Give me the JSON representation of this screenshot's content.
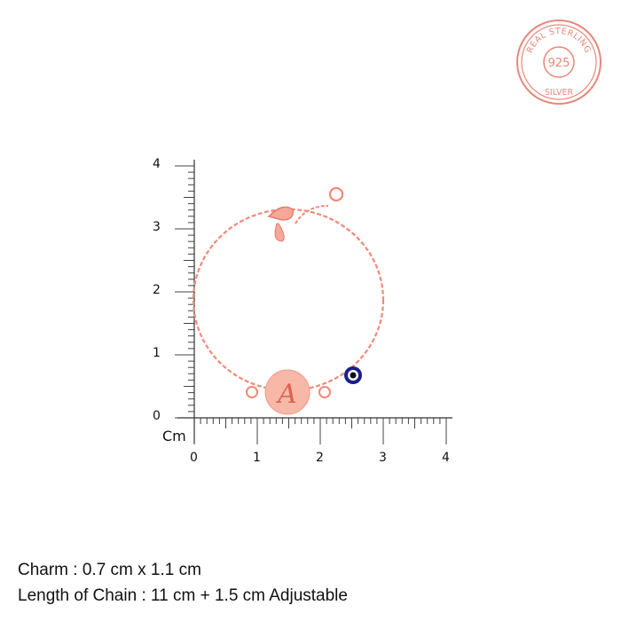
{
  "stamp": {
    "top_text": "REAL STERLING",
    "center_text": "925",
    "bottom_text": "SILVER",
    "color": "#e8877a"
  },
  "ruler": {
    "unit": "Cm",
    "x_labels": [
      "0",
      "1",
      "2",
      "3",
      "4"
    ],
    "y_labels": [
      "0",
      "1",
      "2",
      "3",
      "4"
    ]
  },
  "product": {
    "charm_letter": "A",
    "metal_color": "#f08a78",
    "evil_eye_color": "#1b1f8c"
  },
  "specs": {
    "charm": "Charm : 0.7 cm x 1.1 cm",
    "chain": "Length of Chain : 11 cm + 1.5 cm Adjustable"
  }
}
